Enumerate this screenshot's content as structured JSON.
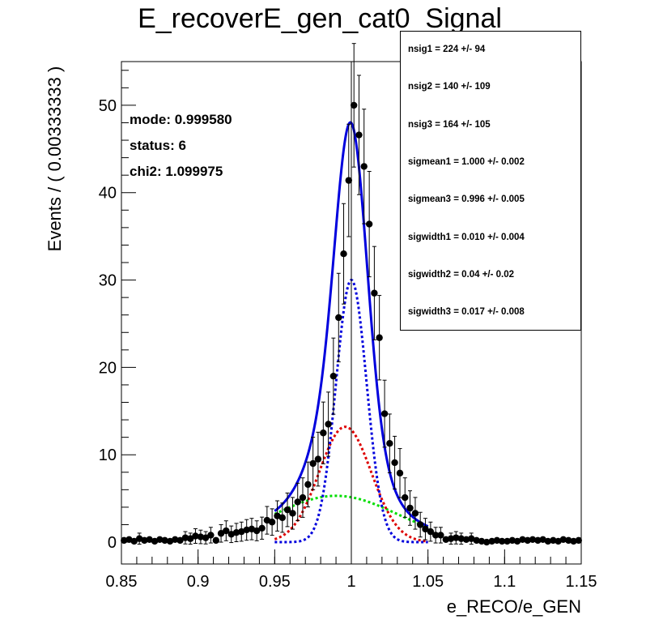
{
  "chart_data": {
    "type": "line",
    "title": "E_recoverE_gen_cat0_Signal",
    "xlabel": "e_RECO/e_GEN",
    "ylabel": "Events / ( 0.00333333 )",
    "xlim": [
      0.85,
      1.15
    ],
    "ylim": [
      -2.5,
      55
    ],
    "xticks": [
      "0.85",
      "0.9",
      "0.95",
      "1",
      "1.05",
      "1.1",
      "1.15"
    ],
    "yticks": [
      "0",
      "10",
      "20",
      "30",
      "40",
      "50"
    ],
    "vertical_line_x": 1.0,
    "annotations": [
      "mode: 0.999580",
      "status: 6",
      "chi2: 1.099975"
    ],
    "fit_params": [
      "nsig1 =  224 +/- 94",
      "nsig2 =  140 +/- 109",
      "nsig3 =  164 +/- 105",
      "sigmean1 =  1.000 +/- 0.002",
      "sigmean3 =  0.996 +/- 0.005",
      "sigwidth1 =  0.010 +/- 0.004",
      "sigwidth2 =  0.04 +/- 0.02",
      "sigwidth3 =  0.017 +/- 0.008"
    ],
    "points": {
      "x": [
        0.8517,
        0.855,
        0.8583,
        0.8617,
        0.865,
        0.8683,
        0.8717,
        0.875,
        0.8783,
        0.8817,
        0.885,
        0.8883,
        0.8917,
        0.895,
        0.8983,
        0.9017,
        0.905,
        0.9083,
        0.9117,
        0.915,
        0.9183,
        0.9217,
        0.925,
        0.9283,
        0.9317,
        0.935,
        0.9383,
        0.9417,
        0.945,
        0.9483,
        0.9517,
        0.955,
        0.9583,
        0.9617,
        0.965,
        0.9683,
        0.9717,
        0.975,
        0.9783,
        0.9817,
        0.985,
        0.9883,
        0.9917,
        0.995,
        0.9983,
        1.0017,
        1.005,
        1.0083,
        1.0117,
        1.015,
        1.0183,
        1.0217,
        1.025,
        1.0283,
        1.0317,
        1.035,
        1.0383,
        1.0417,
        1.045,
        1.0483,
        1.0517,
        1.055,
        1.0583,
        1.0617,
        1.065,
        1.0683,
        1.0717,
        1.075,
        1.0783,
        1.0817,
        1.085,
        1.0883,
        1.0917,
        1.095,
        1.0983,
        1.1017,
        1.105,
        1.1083,
        1.1117,
        1.115,
        1.1183,
        1.1217,
        1.125,
        1.1283,
        1.1317,
        1.135,
        1.1383,
        1.1417,
        1.145,
        1.1483
      ],
      "y": [
        0.2,
        0.3,
        0.1,
        0.4,
        0.2,
        0.3,
        0.1,
        0.3,
        0.2,
        0.1,
        0.3,
        0.2,
        0.5,
        0.4,
        0.7,
        0.6,
        0.5,
        0.8,
        0.2,
        1.0,
        1.3,
        0.9,
        1.1,
        1.2,
        1.4,
        1.5,
        1.3,
        1.6,
        2.5,
        2.3,
        3.0,
        2.8,
        3.7,
        3.3,
        4.6,
        5.1,
        6.6,
        9.0,
        9.5,
        12.5,
        13.5,
        19.0,
        25.7,
        33.0,
        41.4,
        50.0,
        46.6,
        43.0,
        36.4,
        28.5,
        23.4,
        14.7,
        11.3,
        9.1,
        7.9,
        5.1,
        3.9,
        3.3,
        2.0,
        1.5,
        1.2,
        0.8,
        0.8,
        0.3,
        0.4,
        0.5,
        0.4,
        0.3,
        0.4,
        0.2,
        0.1,
        0.0,
        0.1,
        0.2,
        0.1,
        0.1,
        0.2,
        0.1,
        0.3,
        0.2,
        0.3,
        0.2,
        0.3,
        0.1,
        0.2,
        0.1,
        0.3,
        0.2,
        0.1,
        0.2
      ]
    },
    "series": [
      {
        "color": "#0000dd",
        "style": "solid",
        "mean": [
          1.0,
          0.99,
          0.996
        ],
        "width": [
          0.01,
          0.04,
          0.017
        ],
        "amplitude": [
          30.0,
          5.3,
          13.2
        ],
        "range": [
          0.95,
          1.05
        ]
      },
      {
        "color": "#0000dd",
        "style": "dotted",
        "mean": 1.0,
        "width": 0.01,
        "amplitude": 30.0,
        "range": [
          0.95,
          1.05
        ]
      },
      {
        "color": "#00dd00",
        "style": "dotted",
        "mean": 0.99,
        "width": 0.04,
        "amplitude": 5.3,
        "range": [
          0.95,
          1.05
        ]
      },
      {
        "color": "#dd0000",
        "style": "dotted",
        "mean": 0.996,
        "width": 0.017,
        "amplitude": 13.2,
        "range": [
          0.95,
          1.05
        ]
      }
    ]
  }
}
